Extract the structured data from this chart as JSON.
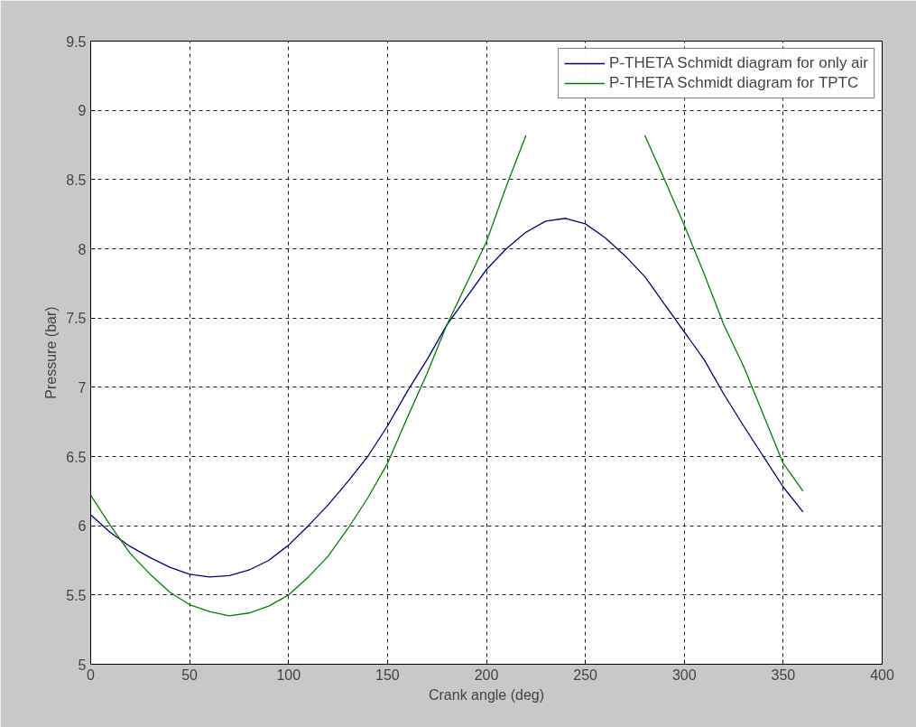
{
  "chart_data": {
    "type": "line",
    "xlabel": "Crank angle (deg)",
    "ylabel": "Pressure (bar)",
    "x": [
      0,
      10,
      20,
      30,
      40,
      50,
      60,
      70,
      80,
      90,
      100,
      110,
      120,
      130,
      140,
      150,
      160,
      170,
      180,
      190,
      200,
      210,
      220,
      230,
      240,
      250,
      260,
      270,
      280,
      290,
      300,
      310,
      320,
      330,
      340,
      350,
      360
    ],
    "series": [
      {
        "name": "P-THETA Schmidt diagram for only air",
        "color": "#000080",
        "values": [
          6.08,
          5.95,
          5.85,
          5.77,
          5.7,
          5.65,
          5.63,
          5.64,
          5.68,
          5.75,
          5.86,
          6.0,
          6.15,
          6.32,
          6.5,
          6.72,
          6.97,
          7.2,
          7.45,
          7.65,
          7.85,
          8.0,
          8.12,
          8.2,
          8.22,
          8.18,
          8.08,
          7.95,
          7.8,
          7.6,
          7.4,
          7.2,
          6.95,
          6.72,
          6.5,
          6.28,
          6.1
        ]
      },
      {
        "name": "P-THETA Schmidt diagram for TPTC",
        "color": "#008000",
        "values": [
          6.22,
          6.0,
          5.8,
          5.65,
          5.52,
          5.43,
          5.38,
          5.35,
          5.37,
          5.42,
          5.5,
          5.63,
          5.78,
          5.98,
          6.2,
          6.45,
          6.78,
          7.1,
          7.45,
          7.75,
          8.05,
          8.45,
          8.82,
          null,
          null,
          null,
          null,
          null,
          8.82,
          8.5,
          8.17,
          7.82,
          7.45,
          7.15,
          6.8,
          6.45,
          6.25
        ]
      }
    ],
    "xlim": [
      0,
      400
    ],
    "xticks": [
      0,
      50,
      100,
      150,
      200,
      250,
      300,
      350,
      400
    ],
    "ylim": [
      5,
      9.5
    ],
    "yticks": [
      5,
      5.5,
      6,
      6.5,
      7,
      7.5,
      8,
      8.5,
      9,
      9.5
    ],
    "grid": true,
    "legend": "top right",
    "line_style": "solid",
    "marker": "none"
  }
}
